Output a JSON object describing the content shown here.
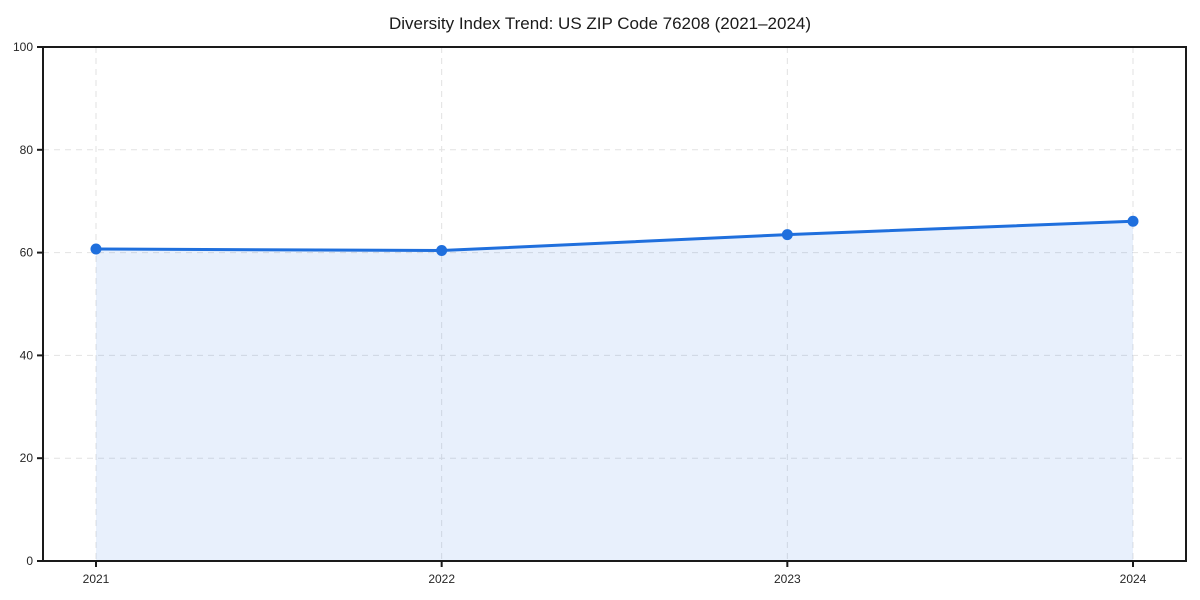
{
  "page": {
    "title": "Diversity Index Trend: US ZIP Code 76208 (2021–2024)"
  },
  "chart_data": {
    "type": "area",
    "title": "Diversity Index Trend: US ZIP Code 76208 (2021–2024)",
    "categories": [
      "2021",
      "2022",
      "2023",
      "2024"
    ],
    "series": [
      {
        "name": "Diversity Index",
        "values": [
          60.7,
          60.4,
          63.5,
          66.1
        ]
      }
    ],
    "xlabel": "",
    "ylabel": "",
    "ylim": [
      0,
      100
    ],
    "yticks": [
      0,
      20,
      40,
      60,
      80,
      100
    ],
    "grid": "dashed",
    "legend": "none",
    "colors": {
      "line": "#1f6fdd",
      "marker": "#1f6fdd",
      "area_fill": "#1f6fdd",
      "area_opacity": 0.1,
      "gridline": "#e2e2e2",
      "spine": "#1a1a1a",
      "tick_label": "#262626"
    }
  }
}
